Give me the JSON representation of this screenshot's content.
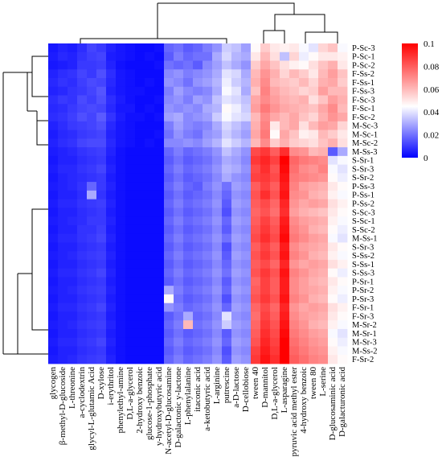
{
  "chart_data": {
    "type": "heatmap",
    "title": "",
    "columns": [
      "glycogen",
      "β-methyl-D-glucoside",
      "L-threonine",
      "a-cyclodextrin",
      "glycyl-L-glutamic Acid",
      "D-xylose",
      "i-erythritol",
      "phenylethyl-amine",
      "D,L-a-glycerol",
      "2-hydroxy benzoic",
      "glucose-1-phosphate",
      "y-hydroxybutyric acid",
      "N-acetyl-D-glucosamine",
      "D-galactonic y-lactone",
      "L-phenylalanine",
      "itaconic acid",
      "a-ketobutyric acid",
      "L-arginine",
      "putrescine",
      "a-D-lactose",
      "D-cellobiose",
      "tween 40",
      "D-mannitol",
      "D,L-a-glycerol",
      "L-asparagine",
      "pyruvic acid methyl ester",
      "4-hydroxy benzoic",
      "tween 80",
      "L-serine",
      "D-glucosaminic acid",
      "D-galacturonic acid"
    ],
    "rows": [
      "P-Sc-3",
      "P-Sc-1",
      "P-Sc-2",
      "F-Ss-2",
      "F-Ss-1",
      "F-Ss-3",
      "F-Sc-3",
      "F-Sc-1",
      "F-Sc-2",
      "M-Sc-3",
      "M-Sc-1",
      "M-Sc-2",
      "M-Ss-3",
      "S-Sr-1",
      "S-Sr-3",
      "S-Sr-2",
      "P-Ss-3",
      "P-Ss-1",
      "P-Ss-2",
      "S-Sc-3",
      "S-Sc-1",
      "S-Sc-2",
      "M-Ss-1",
      "S-Sr-3",
      "S-Ss-2",
      "S-Ss-1",
      "S-Ss-3",
      "P-Sr-1",
      "P-Sr-2",
      "P-Sr-3",
      "F-Sr-1",
      "F-Sr-3",
      "M-Sr-2",
      "M-Sr-1",
      "M-Sr-3",
      "M-Ss-2",
      "F-Sr-2"
    ],
    "colorbar": {
      "min": 0,
      "max": 0.1,
      "ticks": [
        0,
        0.02,
        0.04,
        0.06,
        0.08,
        0.1
      ],
      "colors": [
        "#0000ff",
        "#ffffff",
        "#ff0000"
      ]
    },
    "values": [
      [
        0.004,
        0.006,
        0.005,
        0.008,
        0.012,
        0.01,
        0.006,
        0.004,
        0.003,
        0.002,
        0.002,
        0.003,
        0.018,
        0.02,
        0.016,
        0.018,
        0.022,
        0.026,
        0.036,
        0.034,
        0.028,
        0.046,
        0.056,
        0.05,
        0.048,
        0.05,
        0.044,
        0.04,
        0.054,
        0.058,
        0.044
      ],
      [
        0.005,
        0.007,
        0.006,
        0.009,
        0.011,
        0.012,
        0.005,
        0.004,
        0.003,
        0.002,
        0.003,
        0.002,
        0.016,
        0.022,
        0.018,
        0.02,
        0.02,
        0.03,
        0.038,
        0.032,
        0.03,
        0.05,
        0.06,
        0.052,
        0.034,
        0.054,
        0.042,
        0.046,
        0.05,
        0.05,
        0.048
      ],
      [
        0.004,
        0.005,
        0.006,
        0.01,
        0.01,
        0.011,
        0.006,
        0.003,
        0.002,
        0.002,
        0.002,
        0.003,
        0.02,
        0.018,
        0.02,
        0.016,
        0.024,
        0.028,
        0.034,
        0.03,
        0.026,
        0.056,
        0.064,
        0.058,
        0.052,
        0.048,
        0.046,
        0.052,
        0.058,
        0.062,
        0.05
      ],
      [
        0.006,
        0.008,
        0.009,
        0.012,
        0.01,
        0.014,
        0.008,
        0.004,
        0.003,
        0.002,
        0.002,
        0.002,
        0.024,
        0.026,
        0.022,
        0.024,
        0.026,
        0.03,
        0.04,
        0.038,
        0.03,
        0.06,
        0.068,
        0.062,
        0.054,
        0.06,
        0.056,
        0.05,
        0.06,
        0.066,
        0.058
      ],
      [
        0.007,
        0.009,
        0.008,
        0.011,
        0.013,
        0.012,
        0.007,
        0.004,
        0.003,
        0.002,
        0.003,
        0.002,
        0.026,
        0.024,
        0.02,
        0.026,
        0.028,
        0.032,
        0.042,
        0.036,
        0.032,
        0.062,
        0.07,
        0.06,
        0.058,
        0.056,
        0.06,
        0.054,
        0.062,
        0.064,
        0.056
      ],
      [
        0.006,
        0.007,
        0.009,
        0.01,
        0.012,
        0.015,
        0.006,
        0.004,
        0.003,
        0.003,
        0.002,
        0.002,
        0.022,
        0.028,
        0.024,
        0.022,
        0.024,
        0.03,
        0.044,
        0.04,
        0.03,
        0.058,
        0.072,
        0.064,
        0.06,
        0.058,
        0.054,
        0.056,
        0.066,
        0.06,
        0.06
      ],
      [
        0.008,
        0.01,
        0.009,
        0.013,
        0.011,
        0.014,
        0.008,
        0.005,
        0.003,
        0.002,
        0.002,
        0.003,
        0.024,
        0.026,
        0.022,
        0.028,
        0.026,
        0.034,
        0.04,
        0.038,
        0.034,
        0.064,
        0.07,
        0.066,
        0.062,
        0.06,
        0.062,
        0.052,
        0.058,
        0.066,
        0.062
      ],
      [
        0.007,
        0.008,
        0.01,
        0.012,
        0.013,
        0.012,
        0.007,
        0.004,
        0.004,
        0.002,
        0.003,
        0.002,
        0.026,
        0.024,
        0.026,
        0.024,
        0.03,
        0.032,
        0.046,
        0.042,
        0.036,
        0.066,
        0.074,
        0.068,
        0.064,
        0.062,
        0.06,
        0.058,
        0.064,
        0.07,
        0.06
      ],
      [
        0.008,
        0.009,
        0.011,
        0.014,
        0.012,
        0.016,
        0.009,
        0.005,
        0.003,
        0.003,
        0.002,
        0.003,
        0.028,
        0.03,
        0.024,
        0.026,
        0.028,
        0.036,
        0.044,
        0.04,
        0.038,
        0.06,
        0.07,
        0.064,
        0.06,
        0.064,
        0.058,
        0.054,
        0.062,
        0.068,
        0.064
      ],
      [
        0.006,
        0.008,
        0.01,
        0.011,
        0.012,
        0.014,
        0.007,
        0.004,
        0.003,
        0.002,
        0.002,
        0.002,
        0.022,
        0.028,
        0.024,
        0.022,
        0.024,
        0.03,
        0.038,
        0.034,
        0.03,
        0.062,
        0.072,
        0.05,
        0.06,
        0.064,
        0.052,
        0.06,
        0.066,
        0.064,
        0.054
      ],
      [
        0.005,
        0.007,
        0.008,
        0.01,
        0.011,
        0.012,
        0.006,
        0.004,
        0.003,
        0.002,
        0.002,
        0.003,
        0.02,
        0.026,
        0.022,
        0.02,
        0.026,
        0.028,
        0.036,
        0.032,
        0.028,
        0.064,
        0.074,
        0.046,
        0.064,
        0.058,
        0.048,
        0.05,
        0.06,
        0.056,
        0.05
      ],
      [
        0.006,
        0.008,
        0.009,
        0.012,
        0.013,
        0.013,
        0.007,
        0.004,
        0.003,
        0.002,
        0.003,
        0.002,
        0.024,
        0.024,
        0.026,
        0.024,
        0.028,
        0.032,
        0.04,
        0.036,
        0.032,
        0.06,
        0.07,
        0.056,
        0.062,
        0.056,
        0.054,
        0.052,
        0.058,
        0.062,
        0.052
      ],
      [
        0.005,
        0.006,
        0.007,
        0.009,
        0.01,
        0.011,
        0.006,
        0.003,
        0.002,
        0.002,
        0.002,
        0.002,
        0.018,
        0.022,
        0.018,
        0.02,
        0.022,
        0.026,
        0.034,
        0.03,
        0.026,
        0.084,
        0.088,
        0.08,
        0.09,
        0.07,
        0.068,
        0.06,
        0.062,
        0.016,
        0.03
      ],
      [
        0.004,
        0.006,
        0.006,
        0.008,
        0.009,
        0.01,
        0.005,
        0.003,
        0.002,
        0.002,
        0.002,
        0.002,
        0.016,
        0.02,
        0.016,
        0.018,
        0.02,
        0.024,
        0.03,
        0.028,
        0.024,
        0.088,
        0.092,
        0.086,
        0.1,
        0.078,
        0.074,
        0.072,
        0.07,
        0.04,
        0.044
      ],
      [
        0.005,
        0.007,
        0.007,
        0.009,
        0.01,
        0.012,
        0.006,
        0.003,
        0.002,
        0.002,
        0.002,
        0.002,
        0.018,
        0.022,
        0.018,
        0.02,
        0.022,
        0.026,
        0.032,
        0.03,
        0.026,
        0.084,
        0.09,
        0.082,
        0.098,
        0.076,
        0.07,
        0.068,
        0.072,
        0.044,
        0.04
      ],
      [
        0.004,
        0.006,
        0.007,
        0.008,
        0.009,
        0.01,
        0.005,
        0.003,
        0.002,
        0.002,
        0.002,
        0.002,
        0.016,
        0.02,
        0.016,
        0.018,
        0.02,
        0.024,
        0.03,
        0.026,
        0.024,
        0.086,
        0.088,
        0.084,
        0.096,
        0.074,
        0.072,
        0.07,
        0.068,
        0.046,
        0.042
      ],
      [
        0.005,
        0.006,
        0.007,
        0.009,
        0.018,
        0.01,
        0.006,
        0.003,
        0.002,
        0.002,
        0.002,
        0.002,
        0.018,
        0.022,
        0.018,
        0.016,
        0.022,
        0.026,
        0.02,
        0.028,
        0.026,
        0.08,
        0.086,
        0.08,
        0.094,
        0.072,
        0.066,
        0.064,
        0.062,
        0.05,
        0.046
      ],
      [
        0.004,
        0.006,
        0.006,
        0.008,
        0.03,
        0.009,
        0.005,
        0.003,
        0.002,
        0.002,
        0.002,
        0.002,
        0.016,
        0.02,
        0.016,
        0.018,
        0.02,
        0.024,
        0.018,
        0.026,
        0.024,
        0.082,
        0.09,
        0.082,
        0.096,
        0.07,
        0.068,
        0.062,
        0.06,
        0.048,
        0.044
      ],
      [
        0.005,
        0.007,
        0.007,
        0.009,
        0.01,
        0.011,
        0.006,
        0.003,
        0.002,
        0.002,
        0.002,
        0.002,
        0.018,
        0.022,
        0.018,
        0.02,
        0.022,
        0.026,
        0.016,
        0.028,
        0.026,
        0.08,
        0.084,
        0.078,
        0.092,
        0.068,
        0.064,
        0.066,
        0.064,
        0.052,
        0.048
      ],
      [
        0.004,
        0.006,
        0.006,
        0.008,
        0.009,
        0.01,
        0.005,
        0.003,
        0.002,
        0.002,
        0.002,
        0.002,
        0.016,
        0.02,
        0.016,
        0.018,
        0.02,
        0.024,
        0.014,
        0.026,
        0.024,
        0.078,
        0.082,
        0.076,
        0.09,
        0.066,
        0.062,
        0.06,
        0.058,
        0.05,
        0.046
      ],
      [
        0.005,
        0.006,
        0.007,
        0.008,
        0.01,
        0.01,
        0.006,
        0.003,
        0.002,
        0.002,
        0.002,
        0.002,
        0.018,
        0.022,
        0.018,
        0.02,
        0.022,
        0.026,
        0.018,
        0.028,
        0.026,
        0.08,
        0.086,
        0.08,
        0.094,
        0.07,
        0.066,
        0.064,
        0.062,
        0.048,
        0.044
      ],
      [
        0.004,
        0.006,
        0.006,
        0.009,
        0.009,
        0.011,
        0.005,
        0.003,
        0.002,
        0.002,
        0.002,
        0.002,
        0.016,
        0.02,
        0.016,
        0.018,
        0.02,
        0.024,
        0.016,
        0.026,
        0.024,
        0.082,
        0.088,
        0.082,
        0.096,
        0.072,
        0.068,
        0.062,
        0.06,
        0.046,
        0.042
      ],
      [
        0.005,
        0.007,
        0.007,
        0.009,
        0.01,
        0.012,
        0.006,
        0.003,
        0.002,
        0.002,
        0.002,
        0.002,
        0.018,
        0.022,
        0.018,
        0.02,
        0.022,
        0.026,
        0.02,
        0.028,
        0.026,
        0.084,
        0.09,
        0.084,
        0.098,
        0.074,
        0.07,
        0.066,
        0.064,
        0.044,
        0.04
      ],
      [
        0.004,
        0.006,
        0.006,
        0.008,
        0.009,
        0.01,
        0.005,
        0.003,
        0.002,
        0.002,
        0.002,
        0.002,
        0.016,
        0.02,
        0.016,
        0.018,
        0.02,
        0.024,
        0.014,
        0.026,
        0.024,
        0.08,
        0.086,
        0.08,
        0.094,
        0.07,
        0.066,
        0.064,
        0.062,
        0.05,
        0.046
      ],
      [
        0.005,
        0.006,
        0.007,
        0.009,
        0.01,
        0.011,
        0.006,
        0.003,
        0.002,
        0.002,
        0.002,
        0.002,
        0.018,
        0.022,
        0.018,
        0.02,
        0.022,
        0.026,
        0.016,
        0.028,
        0.026,
        0.082,
        0.088,
        0.082,
        0.096,
        0.072,
        0.068,
        0.062,
        0.06,
        0.048,
        0.044
      ],
      [
        0.004,
        0.006,
        0.006,
        0.008,
        0.009,
        0.01,
        0.005,
        0.003,
        0.002,
        0.002,
        0.002,
        0.002,
        0.016,
        0.02,
        0.016,
        0.018,
        0.02,
        0.024,
        0.018,
        0.026,
        0.024,
        0.08,
        0.084,
        0.078,
        0.092,
        0.068,
        0.064,
        0.066,
        0.064,
        0.052,
        0.048
      ],
      [
        0.005,
        0.007,
        0.007,
        0.009,
        0.01,
        0.012,
        0.006,
        0.003,
        0.002,
        0.002,
        0.002,
        0.002,
        0.018,
        0.022,
        0.018,
        0.02,
        0.022,
        0.026,
        0.02,
        0.028,
        0.026,
        0.082,
        0.088,
        0.082,
        0.096,
        0.072,
        0.068,
        0.064,
        0.062,
        0.046,
        0.042
      ],
      [
        0.004,
        0.006,
        0.006,
        0.008,
        0.009,
        0.01,
        0.005,
        0.003,
        0.002,
        0.002,
        0.002,
        0.002,
        0.016,
        0.02,
        0.016,
        0.018,
        0.02,
        0.024,
        0.016,
        0.026,
        0.024,
        0.078,
        0.086,
        0.08,
        0.094,
        0.07,
        0.066,
        0.062,
        0.06,
        0.05,
        0.046
      ],
      [
        0.005,
        0.006,
        0.007,
        0.009,
        0.01,
        0.011,
        0.006,
        0.003,
        0.002,
        0.002,
        0.002,
        0.002,
        0.03,
        0.022,
        0.018,
        0.02,
        0.022,
        0.026,
        0.018,
        0.028,
        0.026,
        0.08,
        0.086,
        0.08,
        0.094,
        0.07,
        0.066,
        0.064,
        0.062,
        0.048,
        0.044
      ],
      [
        0.004,
        0.006,
        0.006,
        0.008,
        0.009,
        0.01,
        0.005,
        0.003,
        0.002,
        0.002,
        0.002,
        0.002,
        0.046,
        0.02,
        0.016,
        0.018,
        0.02,
        0.024,
        0.014,
        0.026,
        0.024,
        0.082,
        0.088,
        0.082,
        0.096,
        0.072,
        0.068,
        0.062,
        0.06,
        0.046,
        0.042
      ],
      [
        0.005,
        0.007,
        0.007,
        0.009,
        0.01,
        0.012,
        0.006,
        0.003,
        0.002,
        0.002,
        0.002,
        0.002,
        0.026,
        0.022,
        0.018,
        0.02,
        0.022,
        0.026,
        0.018,
        0.028,
        0.026,
        0.078,
        0.084,
        0.078,
        0.092,
        0.068,
        0.064,
        0.066,
        0.064,
        0.052,
        0.048
      ],
      [
        0.004,
        0.006,
        0.006,
        0.008,
        0.009,
        0.01,
        0.005,
        0.003,
        0.002,
        0.002,
        0.002,
        0.002,
        0.016,
        0.02,
        0.03,
        0.018,
        0.02,
        0.024,
        0.04,
        0.026,
        0.024,
        0.076,
        0.086,
        0.08,
        0.094,
        0.07,
        0.066,
        0.064,
        0.062,
        0.05,
        0.046
      ],
      [
        0.005,
        0.006,
        0.007,
        0.009,
        0.01,
        0.011,
        0.006,
        0.003,
        0.002,
        0.002,
        0.002,
        0.002,
        0.018,
        0.022,
        0.06,
        0.02,
        0.022,
        0.026,
        0.036,
        0.028,
        0.026,
        0.078,
        0.088,
        0.082,
        0.096,
        0.072,
        0.068,
        0.062,
        0.06,
        0.048,
        0.044
      ],
      [
        0.004,
        0.006,
        0.006,
        0.008,
        0.009,
        0.01,
        0.005,
        0.003,
        0.002,
        0.002,
        0.002,
        0.002,
        0.016,
        0.02,
        0.016,
        0.018,
        0.02,
        0.024,
        0.016,
        0.026,
        0.024,
        0.08,
        0.09,
        0.084,
        0.098,
        0.074,
        0.07,
        0.066,
        0.064,
        0.044,
        0.04
      ],
      [
        0.005,
        0.007,
        0.007,
        0.009,
        0.01,
        0.012,
        0.006,
        0.003,
        0.002,
        0.002,
        0.002,
        0.002,
        0.018,
        0.022,
        0.018,
        0.02,
        0.022,
        0.026,
        0.018,
        0.028,
        0.026,
        0.082,
        0.092,
        0.086,
        0.1,
        0.076,
        0.072,
        0.068,
        0.066,
        0.046,
        0.042
      ],
      [
        0.004,
        0.006,
        0.006,
        0.008,
        0.009,
        0.01,
        0.005,
        0.003,
        0.002,
        0.002,
        0.002,
        0.002,
        0.016,
        0.02,
        0.016,
        0.018,
        0.02,
        0.024,
        0.014,
        0.026,
        0.024,
        0.086,
        0.094,
        0.088,
        0.1,
        0.078,
        0.074,
        0.07,
        0.068,
        0.048,
        0.044
      ],
      [
        0.005,
        0.006,
        0.007,
        0.009,
        0.01,
        0.011,
        0.006,
        0.003,
        0.002,
        0.002,
        0.002,
        0.002,
        0.018,
        0.022,
        0.018,
        0.02,
        0.022,
        0.026,
        0.016,
        0.028,
        0.026,
        0.088,
        0.096,
        0.09,
        0.1,
        0.08,
        0.076,
        0.072,
        0.07,
        0.05,
        0.046
      ]
    ]
  }
}
